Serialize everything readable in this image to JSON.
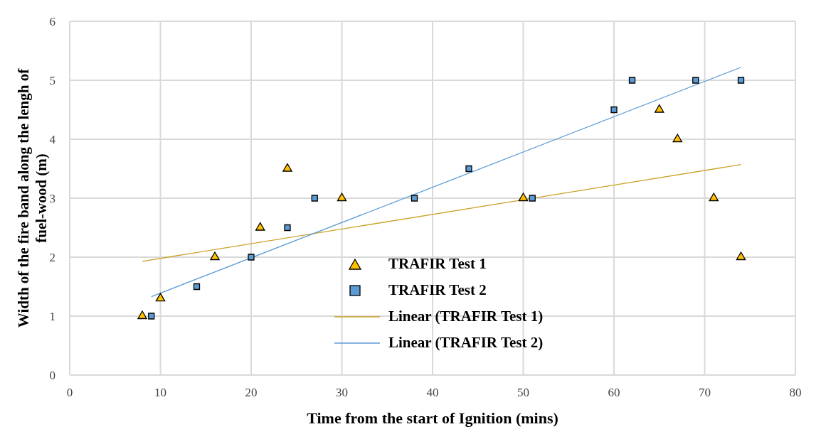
{
  "chart_data": {
    "type": "scatter",
    "xlabel": "Time  from the start of Ignition (mins)",
    "ylabel": "Width of the fire band along the lengh of fuel-wood (m)",
    "xlim": [
      0,
      80
    ],
    "xticks": [
      0,
      10,
      20,
      30,
      40,
      50,
      60,
      70,
      80
    ],
    "ylim": [
      0,
      6
    ],
    "yticks": [
      0,
      1,
      2,
      3,
      4,
      5,
      6
    ],
    "grid": true,
    "legend": "bottom",
    "series": [
      {
        "name": "TRAFIR Test 1",
        "marker": "triangle",
        "color": "#ffc000",
        "x": [
          8,
          10,
          16,
          21,
          24,
          30,
          50,
          65,
          67,
          71,
          74
        ],
        "values": [
          1,
          1.3,
          2,
          2.5,
          3.5,
          3,
          3,
          4.5,
          4,
          3,
          2
        ]
      },
      {
        "name": "TRAFIR Test 2",
        "marker": "square",
        "color": "#5b9bd5",
        "x": [
          9,
          14,
          20,
          24,
          27,
          38,
          44,
          51,
          60,
          62,
          69,
          74
        ],
        "values": [
          1,
          1.5,
          2,
          2.5,
          3,
          3,
          3.5,
          3,
          4.5,
          5,
          5,
          5
        ]
      },
      {
        "name": "Linear (TRAFIR Test 1)",
        "type": "line",
        "marker": "none",
        "color": "#c9a227",
        "x": [
          8,
          74
        ],
        "values": [
          1.93,
          3.57
        ]
      },
      {
        "name": "Linear (TRAFIR Test 2)",
        "type": "line",
        "marker": "none",
        "color": "#5b9bd5",
        "x": [
          9,
          74
        ],
        "values": [
          1.33,
          5.22
        ]
      }
    ]
  }
}
